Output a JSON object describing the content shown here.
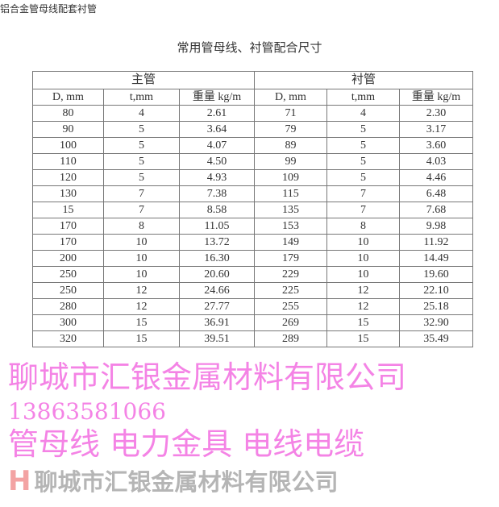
{
  "page_heading": "铝合金管母线配套衬管",
  "title": "常用管母线、衬管配合尺寸",
  "groups": [
    "主管",
    "衬管"
  ],
  "columns": [
    "D, mm",
    "t,mm",
    "重量 kg/m",
    "D, mm",
    "t,mm",
    "重量 kg/m"
  ],
  "rows": [
    [
      "80",
      "4",
      "2.61",
      "71",
      "4",
      "2.30"
    ],
    [
      "90",
      "5",
      "3.64",
      "79",
      "5",
      "3.17"
    ],
    [
      "100",
      "5",
      "4.07",
      "89",
      "5",
      "3.60"
    ],
    [
      "110",
      "5",
      "4.50",
      "99",
      "5",
      "4.03"
    ],
    [
      "120",
      "5",
      "4.93",
      "109",
      "5",
      "4.46"
    ],
    [
      "130",
      "7",
      "7.38",
      "115",
      "7",
      "6.48"
    ],
    [
      "15",
      "7",
      "8.58",
      "135",
      "7",
      "7.68"
    ],
    [
      "170",
      "8",
      "11.05",
      "153",
      "8",
      "9.98"
    ],
    [
      "170",
      "10",
      "13.72",
      "149",
      "10",
      "11.92"
    ],
    [
      "200",
      "10",
      "16.30",
      "179",
      "10",
      "14.49"
    ],
    [
      "250",
      "10",
      "20.60",
      "229",
      "10",
      "19.60"
    ],
    [
      "250",
      "12",
      "24.66",
      "225",
      "12",
      "22.10"
    ],
    [
      "280",
      "12",
      "27.77",
      "255",
      "12",
      "25.18"
    ],
    [
      "300",
      "15",
      "36.91",
      "269",
      "15",
      "32.90"
    ],
    [
      "320",
      "15",
      "39.51",
      "289",
      "15",
      "35.49"
    ]
  ],
  "watermarks": {
    "company": "聊城市汇银金属材料有限公司",
    "phone": "13863581066",
    "products": "管母线 电力金具 电线电缆",
    "logo_letter": "H",
    "logo_text": "聊城市汇银金属材料有限公司"
  }
}
